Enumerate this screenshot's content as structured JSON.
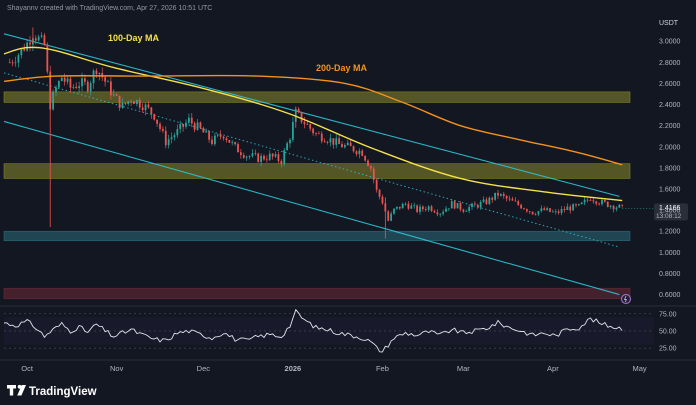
{
  "header": {
    "credit": "Shayannv created with TradingView.com, Apr 27, 2026 10:51 UTC",
    "currency": "USDT"
  },
  "brand": {
    "name": "TradingView"
  },
  "colors": {
    "background": "#131722",
    "candle_up": "#26a69a",
    "candle_down": "#ef5350",
    "ma100": "#f5e14a",
    "ma200": "#f2911d",
    "channel": "#2ec4d6",
    "zone_yellow": "#8a8a2a",
    "zone_blue": "#2a6e7a",
    "zone_red": "#6e2a35",
    "rsi_line": "#e0e3eb"
  },
  "chart_data": [
    {
      "type": "candlestick",
      "ylim": [
        0.52,
        3.22
      ],
      "y_ticks": [
        "3.0000",
        "2.8000",
        "2.6000",
        "2.4000",
        "2.2000",
        "2.0000",
        "1.8000",
        "1.6000",
        "1.4000",
        "1.2000",
        "1.0000",
        "0.8000",
        "0.6000"
      ],
      "y_tick_values": [
        3.0,
        2.8,
        2.6,
        2.4,
        2.2,
        2.0,
        1.8,
        1.6,
        1.4,
        1.2,
        1.0,
        0.8,
        0.6
      ],
      "x_ticks": [
        "Oct",
        "Nov",
        "Dec",
        "2026",
        "Feb",
        "Mar",
        "Apr",
        "May"
      ],
      "x_tick_days": [
        0,
        31,
        61,
        92,
        123,
        151,
        182,
        212
      ],
      "x_range_days": [
        -8,
        217
      ],
      "current_price": {
        "value": 1.4166,
        "label": "1.4166",
        "countdown": "13:08:12"
      },
      "annotations": [
        {
          "text": "100-Day MA",
          "color": "#f5e14a"
        },
        {
          "text": "200-Day MA",
          "color": "#f2911d"
        }
      ],
      "zones": [
        {
          "name": "resistance-zone-upper",
          "y_from": 2.42,
          "y_to": 2.52,
          "color": "#8a8a2a"
        },
        {
          "name": "resistance-zone-lower",
          "y_from": 1.7,
          "y_to": 1.84,
          "color": "#8a8a2a"
        },
        {
          "name": "support-zone",
          "y_from": 1.11,
          "y_to": 1.2,
          "color": "#2a6e7a"
        },
        {
          "name": "demand-zone",
          "y_from": 0.56,
          "y_to": 0.66,
          "color": "#6e2a35"
        }
      ],
      "channel_lines": [
        {
          "name": "channel-upper",
          "style": "solid",
          "points": [
            [
              -8,
              3.07
            ],
            [
              205,
              1.53
            ]
          ]
        },
        {
          "name": "channel-lower",
          "style": "solid",
          "points": [
            [
              -8,
              2.24
            ],
            [
              205,
              0.6
            ]
          ]
        },
        {
          "name": "channel-mid",
          "style": "dotted",
          "points": [
            [
              -8,
              2.7
            ],
            [
              205,
              1.05
            ]
          ]
        }
      ],
      "series": [
        {
          "name": "100-Day MA",
          "points": [
            [
              -8,
              2.88
            ],
            [
              0,
              2.94
            ],
            [
              10,
              2.91
            ],
            [
              30,
              2.75
            ],
            [
              60,
              2.56
            ],
            [
              90,
              2.32
            ],
            [
              120,
              1.98
            ],
            [
              150,
              1.7
            ],
            [
              180,
              1.57
            ],
            [
              206,
              1.49
            ]
          ]
        },
        {
          "name": "200-Day MA",
          "points": [
            [
              -8,
              2.62
            ],
            [
              10,
              2.67
            ],
            [
              40,
              2.67
            ],
            [
              80,
              2.67
            ],
            [
              110,
              2.6
            ],
            [
              130,
              2.42
            ],
            [
              150,
              2.2
            ],
            [
              170,
              2.07
            ],
            [
              190,
              1.95
            ],
            [
              206,
              1.83
            ]
          ]
        }
      ],
      "candles_path": [
        [
          -6,
          2.8
        ],
        [
          -3,
          2.88
        ],
        [
          0,
          2.98
        ],
        [
          2,
          3.08
        ],
        [
          4,
          3.02
        ],
        [
          6,
          2.96
        ],
        [
          8,
          2.4
        ],
        [
          10,
          2.55
        ],
        [
          12,
          2.66
        ],
        [
          15,
          2.56
        ],
        [
          18,
          2.6
        ],
        [
          21,
          2.58
        ],
        [
          24,
          2.75
        ],
        [
          27,
          2.62
        ],
        [
          30,
          2.48
        ],
        [
          33,
          2.38
        ],
        [
          36,
          2.46
        ],
        [
          40,
          2.4
        ],
        [
          44,
          2.3
        ],
        [
          48,
          2.05
        ],
        [
          52,
          2.14
        ],
        [
          56,
          2.25
        ],
        [
          60,
          2.16
        ],
        [
          64,
          2.05
        ],
        [
          68,
          2.12
        ],
        [
          72,
          1.99
        ],
        [
          76,
          1.92
        ],
        [
          80,
          1.89
        ],
        [
          84,
          1.91
        ],
        [
          88,
          1.87
        ],
        [
          91,
          2.1
        ],
        [
          93,
          2.32
        ],
        [
          96,
          2.23
        ],
        [
          100,
          2.12
        ],
        [
          104,
          2.08
        ],
        [
          108,
          2.02
        ],
        [
          112,
          1.99
        ],
        [
          116,
          1.95
        ],
        [
          119,
          1.8
        ],
        [
          121,
          1.58
        ],
        [
          123,
          1.48
        ],
        [
          125,
          1.3
        ],
        [
          127,
          1.4
        ],
        [
          131,
          1.46
        ],
        [
          135,
          1.4
        ],
        [
          139,
          1.43
        ],
        [
          143,
          1.38
        ],
        [
          147,
          1.46
        ],
        [
          151,
          1.41
        ],
        [
          155,
          1.44
        ],
        [
          159,
          1.48
        ],
        [
          163,
          1.55
        ],
        [
          167,
          1.49
        ],
        [
          171,
          1.44
        ],
        [
          175,
          1.38
        ],
        [
          179,
          1.4
        ],
        [
          183,
          1.37
        ],
        [
          187,
          1.42
        ],
        [
          191,
          1.43
        ],
        [
          195,
          1.52
        ],
        [
          199,
          1.47
        ],
        [
          203,
          1.44
        ],
        [
          206,
          1.42
        ]
      ],
      "wicks": [
        {
          "day": 8,
          "low": 1.24,
          "high": 2.62
        },
        {
          "day": 124,
          "low": 1.13,
          "high": 1.52
        },
        {
          "day": 2,
          "low": 2.98,
          "high": 3.13
        },
        {
          "day": 93,
          "low": 2.18,
          "high": 2.38
        }
      ]
    },
    {
      "type": "line",
      "name": "RSI",
      "ylim": [
        15,
        82
      ],
      "y_ticks": [
        "75.00",
        "50.00",
        "25.00"
      ],
      "y_tick_values": [
        75,
        50,
        25
      ],
      "band": [
        30,
        70
      ],
      "values": [
        [
          -8,
          62
        ],
        [
          -4,
          58
        ],
        [
          0,
          64
        ],
        [
          3,
          55
        ],
        [
          6,
          42
        ],
        [
          9,
          52
        ],
        [
          12,
          60
        ],
        [
          15,
          50
        ],
        [
          18,
          56
        ],
        [
          21,
          48
        ],
        [
          24,
          60
        ],
        [
          27,
          50
        ],
        [
          30,
          42
        ],
        [
          33,
          47
        ],
        [
          36,
          52
        ],
        [
          40,
          44
        ],
        [
          44,
          38
        ],
        [
          48,
          36
        ],
        [
          52,
          47
        ],
        [
          56,
          50
        ],
        [
          60,
          45
        ],
        [
          64,
          40
        ],
        [
          68,
          48
        ],
        [
          72,
          38
        ],
        [
          76,
          36
        ],
        [
          80,
          42
        ],
        [
          84,
          45
        ],
        [
          88,
          42
        ],
        [
          91,
          58
        ],
        [
          93,
          78
        ],
        [
          96,
          66
        ],
        [
          100,
          55
        ],
        [
          104,
          52
        ],
        [
          108,
          47
        ],
        [
          112,
          44
        ],
        [
          116,
          40
        ],
        [
          119,
          34
        ],
        [
          121,
          25
        ],
        [
          123,
          20
        ],
        [
          125,
          30
        ],
        [
          127,
          40
        ],
        [
          131,
          47
        ],
        [
          135,
          44
        ],
        [
          139,
          49
        ],
        [
          143,
          44
        ],
        [
          147,
          52
        ],
        [
          151,
          47
        ],
        [
          155,
          50
        ],
        [
          159,
          54
        ],
        [
          163,
          62
        ],
        [
          167,
          55
        ],
        [
          171,
          50
        ],
        [
          175,
          44
        ],
        [
          179,
          47
        ],
        [
          183,
          43
        ],
        [
          187,
          53
        ],
        [
          191,
          55
        ],
        [
          195,
          68
        ],
        [
          199,
          60
        ],
        [
          203,
          56
        ],
        [
          206,
          54
        ]
      ]
    }
  ]
}
